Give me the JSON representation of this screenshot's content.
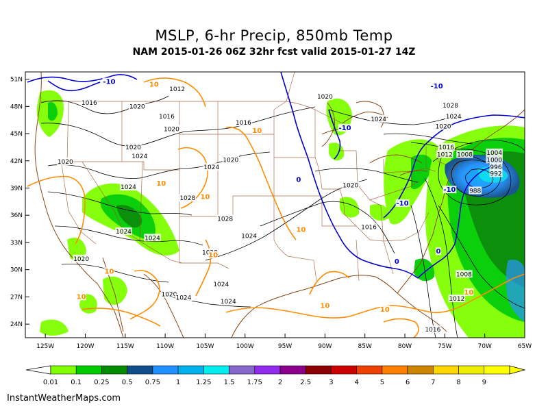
{
  "header": {
    "title": "MSLP, 6-hr Precip, 850mb Temp",
    "subtitle": "NAM 2015-01-26 06Z 32hr fcst valid 2015-01-27 14Z"
  },
  "map": {
    "lat_labels": [
      "51N",
      "48N",
      "45N",
      "42N",
      "39N",
      "36N",
      "33N",
      "30N",
      "27N",
      "24N"
    ],
    "lon_labels": [
      "125W",
      "120W",
      "115W",
      "110W",
      "105W",
      "100W",
      "95W",
      "90W",
      "85W",
      "80W",
      "75W",
      "70W",
      "65W"
    ],
    "isobar_labels": [
      {
        "text": "1016",
        "lon": -119.5,
        "lat": 48.4
      },
      {
        "text": "1020",
        "lon": -113.5,
        "lat": 48.0
      },
      {
        "text": "1012",
        "lon": -108.5,
        "lat": 49.9
      },
      {
        "text": "1016",
        "lon": -109.8,
        "lat": 46.9
      },
      {
        "text": "1020",
        "lon": -109.2,
        "lat": 45.5
      },
      {
        "text": "1020",
        "lon": -114.0,
        "lat": 43.5
      },
      {
        "text": "1024",
        "lon": -113.2,
        "lat": 42.5
      },
      {
        "text": "1020",
        "lon": -122.5,
        "lat": 41.9
      },
      {
        "text": "1024",
        "lon": -104.2,
        "lat": 41.3
      },
      {
        "text": "1020",
        "lon": -101.8,
        "lat": 42.1
      },
      {
        "text": "1020",
        "lon": -90.0,
        "lat": 49.1
      },
      {
        "text": "1016",
        "lon": -100.2,
        "lat": 46.2
      },
      {
        "text": "1024",
        "lon": -114.6,
        "lat": 39.1
      },
      {
        "text": "1028",
        "lon": -107.2,
        "lat": 37.9
      },
      {
        "text": "1028",
        "lon": -102.5,
        "lat": 35.6
      },
      {
        "text": "1024",
        "lon": -115.2,
        "lat": 34.2
      },
      {
        "text": "1024",
        "lon": -111.6,
        "lat": 33.5
      },
      {
        "text": "1024",
        "lon": -99.5,
        "lat": 33.7
      },
      {
        "text": "1028",
        "lon": -104.4,
        "lat": 31.9
      },
      {
        "text": "1020",
        "lon": -120.5,
        "lat": 31.2
      },
      {
        "text": "1024",
        "lon": -103.0,
        "lat": 28.4
      },
      {
        "text": "1020",
        "lon": -109.5,
        "lat": 27.3
      },
      {
        "text": "1024",
        "lon": -107.7,
        "lat": 26.9
      },
      {
        "text": "1024",
        "lon": -102.1,
        "lat": 26.5
      },
      {
        "text": "1020",
        "lon": -86.8,
        "lat": 39.3
      },
      {
        "text": "1016",
        "lon": -84.5,
        "lat": 34.7
      },
      {
        "text": "1024",
        "lon": -83.3,
        "lat": 46.6
      },
      {
        "text": "1028",
        "lon": -74.3,
        "lat": 48.1
      },
      {
        "text": "1024",
        "lon": -73.9,
        "lat": 46.9
      },
      {
        "text": "1020",
        "lon": -75.2,
        "lat": 45.8
      },
      {
        "text": "1016",
        "lon": -74.8,
        "lat": 43.5
      },
      {
        "text": "1012",
        "lon": -75.0,
        "lat": 42.7
      },
      {
        "text": "1008",
        "lon": -72.5,
        "lat": 42.7
      },
      {
        "text": "1004",
        "lon": -68.8,
        "lat": 42.9
      },
      {
        "text": "1000",
        "lon": -68.8,
        "lat": 42.1
      },
      {
        "text": "996",
        "lon": -68.6,
        "lat": 41.3
      },
      {
        "text": "992",
        "lon": -68.6,
        "lat": 40.6
      },
      {
        "text": "988",
        "lon": -71.2,
        "lat": 38.7
      },
      {
        "text": "1008",
        "lon": -72.6,
        "lat": 29.5
      },
      {
        "text": "1012",
        "lon": -73.5,
        "lat": 26.8
      },
      {
        "text": "1016",
        "lon": -76.5,
        "lat": 23.4
      }
    ],
    "temp_labels_blue": [
      {
        "text": "-10",
        "lon": -117.0,
        "lat": 50.7
      },
      {
        "text": "-10",
        "lon": -87.5,
        "lat": 45.6
      },
      {
        "text": "-10",
        "lon": -76.0,
        "lat": 50.2
      },
      {
        "text": "0",
        "lon": -93.3,
        "lat": 39.9
      },
      {
        "text": "-10",
        "lon": -80.3,
        "lat": 37.3
      },
      {
        "text": "-10",
        "lon": -74.4,
        "lat": 38.8
      },
      {
        "text": "0",
        "lon": -81.0,
        "lat": 30.9
      },
      {
        "text": "0",
        "lon": -75.8,
        "lat": 32.0
      }
    ],
    "temp_labels_orange": [
      {
        "text": "10",
        "lon": -111.4,
        "lat": 50.4
      },
      {
        "text": "10",
        "lon": -98.5,
        "lat": 45.3
      },
      {
        "text": "10",
        "lon": -110.5,
        "lat": 39.5
      },
      {
        "text": "10",
        "lon": -105.0,
        "lat": 38.0
      },
      {
        "text": "10",
        "lon": -93.0,
        "lat": 34.4
      },
      {
        "text": "10",
        "lon": -117.0,
        "lat": 29.8
      },
      {
        "text": "10",
        "lon": -104.0,
        "lat": 31.6
      },
      {
        "text": "10",
        "lon": -120.5,
        "lat": 27.0
      },
      {
        "text": "10",
        "lon": -90.0,
        "lat": 26.0
      },
      {
        "text": "10",
        "lon": -82.5,
        "lat": 25.6
      },
      {
        "text": "10",
        "lon": -72.0,
        "lat": 27.5
      }
    ]
  },
  "legend": {
    "labels": [
      "0.01",
      "0.1",
      "0.25",
      "0.5",
      "0.75",
      "1",
      "1.25",
      "1.5",
      "1.75",
      "2",
      "2.5",
      "3",
      "4",
      "5",
      "6",
      "7",
      "8",
      "9"
    ],
    "colors": [
      "#7fff00",
      "#00cd00",
      "#008b00",
      "#104e8b",
      "#1e90ff",
      "#00b2ee",
      "#00eeee",
      "#8968cd",
      "#912cee",
      "#8b008b",
      "#8b0000",
      "#cd0000",
      "#ee4000",
      "#ff7f00",
      "#cd8500",
      "#ffd700",
      "#eeee00",
      "#ffff00"
    ]
  },
  "credit": "InstantWeatherMaps.com"
}
